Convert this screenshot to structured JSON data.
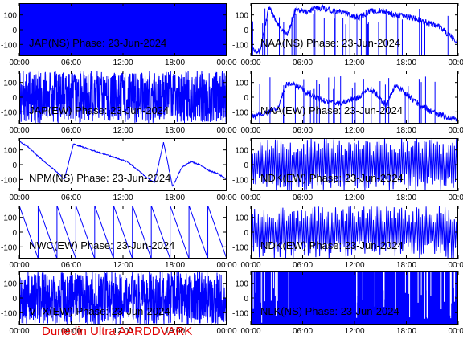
{
  "footer": "Dunedin Ultra AARDDVARK",
  "date": "23-Jun-2024",
  "colors": {
    "trace": "#0000ff",
    "axes": "#000000",
    "footer": "#e00000",
    "background": "#ffffff"
  },
  "chart_data": [
    {
      "type": "line",
      "title": "JAP(NS) Phase: 23-Jun-2024",
      "xlim": [
        "00:00",
        "24:00"
      ],
      "ylim": [
        -180,
        180
      ],
      "xticks": [
        "00:00",
        "06:00",
        "12:00",
        "18:00",
        "00:00"
      ],
      "yticks": [
        100,
        0,
        -100
      ],
      "series": [
        {
          "pattern": "saturated",
          "values": []
        }
      ]
    },
    {
      "type": "line",
      "title": "NAA(NS) Phase: 23-Jun-2024",
      "xlim": [
        "00:00",
        "24:00"
      ],
      "ylim": [
        -180,
        180
      ],
      "xticks": [
        "00:00",
        "06:00",
        "12:00",
        "18:00",
        "00:00"
      ],
      "yticks": [
        100,
        0,
        -100
      ],
      "series": [
        {
          "pattern": "drift",
          "values": [
            -120,
            -150,
            150,
            40,
            -40,
            140,
            120,
            140,
            150,
            130,
            120,
            100,
            80,
            120,
            130,
            120,
            100,
            90,
            80,
            60,
            40,
            20,
            -40,
            -90
          ]
        }
      ]
    },
    {
      "type": "line",
      "title": "JAP(EW) Phase: 23-Jun-2024",
      "xlim": [
        "00:00",
        "24:00"
      ],
      "ylim": [
        -180,
        180
      ],
      "xticks": [
        "00:00",
        "06:00",
        "12:00",
        "18:00",
        "00:00"
      ],
      "yticks": [
        100,
        0,
        -100
      ],
      "series": [
        {
          "pattern": "noise",
          "values": []
        }
      ]
    },
    {
      "type": "line",
      "title": "NAA(EW) Phase: 23-Jun-2024",
      "xlim": [
        "00:00",
        "24:00"
      ],
      "ylim": [
        -180,
        180
      ],
      "xticks": [
        "00:00",
        "06:00",
        "12:00",
        "18:00",
        "00:00"
      ],
      "yticks": [
        100,
        0,
        -100
      ],
      "series": [
        {
          "pattern": "drift",
          "values": [
            -140,
            -120,
            -100,
            -80,
            100,
            80,
            40,
            0,
            -20,
            -40,
            -40,
            -20,
            0,
            60,
            20,
            -60,
            80,
            40,
            -20,
            -60,
            -100,
            -120,
            -140,
            -150
          ]
        }
      ]
    },
    {
      "type": "line",
      "title": "NPM(NS) Phase: 23-Jun-2024",
      "xlim": [
        "00:00",
        "24:00"
      ],
      "ylim": [
        -180,
        180
      ],
      "xticks": [
        "00:00",
        "06:00",
        "12:00",
        "18:00",
        "00:00"
      ],
      "yticks": [
        100,
        0,
        -100
      ],
      "series": [
        {
          "pattern": "smooth",
          "values": [
            160,
            120,
            60,
            10,
            -40,
            -100,
            140,
            120,
            100,
            80,
            60,
            40,
            20,
            -30,
            -80,
            -120,
            150,
            -150,
            -20,
            20,
            0,
            -40,
            -60,
            -100
          ]
        }
      ]
    },
    {
      "type": "line",
      "title": "NDK(EW) Phase: 23-Jun-2024",
      "xlim": [
        "00:00",
        "24:00"
      ],
      "ylim": [
        -180,
        180
      ],
      "xticks": [
        "00:00",
        "06:00",
        "12:00",
        "18:00",
        "00:00"
      ],
      "yticks": [
        100,
        0,
        -100
      ],
      "series": [
        {
          "pattern": "zigzag",
          "values": []
        }
      ]
    },
    {
      "type": "line",
      "title": "NWC(EW) Phase: 23-Jun-2024",
      "xlim": [
        "00:00",
        "24:00"
      ],
      "ylim": [
        -180,
        180
      ],
      "xticks": [
        "00:00",
        "06:00",
        "12:00",
        "18:00",
        "00:00"
      ],
      "yticks": [
        100,
        0,
        -100
      ],
      "series": [
        {
          "pattern": "sawtooth",
          "values": []
        }
      ]
    },
    {
      "type": "line",
      "title": "NDK(EW) Phase: 23-Jun-2024",
      "xlim": [
        "00:00",
        "24:00"
      ],
      "ylim": [
        -180,
        180
      ],
      "xticks": [
        "00:00",
        "06:00",
        "12:00",
        "18:00",
        "00:00"
      ],
      "yticks": [
        100,
        0,
        -100
      ],
      "series": [
        {
          "pattern": "zigzag",
          "values": []
        }
      ]
    },
    {
      "type": "line",
      "title": "VTX(EW) Phase: 23-Jun-2024",
      "xlim": [
        "00:00",
        "24:00"
      ],
      "ylim": [
        -180,
        180
      ],
      "xticks": [
        "00:00",
        "06:00",
        "12:00",
        "18:00",
        "00:00"
      ],
      "yticks": [
        100,
        0,
        -100
      ],
      "series": [
        {
          "pattern": "noise",
          "values": []
        }
      ]
    },
    {
      "type": "line",
      "title": "NLK(NS) Phase: 23-Jun-2024",
      "xlim": [
        "00:00",
        "24:00"
      ],
      "ylim": [
        -180,
        180
      ],
      "xticks": [
        "00:00",
        "06:00",
        "12:00",
        "18:00",
        "00:00"
      ],
      "yticks": [
        100,
        0,
        -100
      ],
      "series": [
        {
          "pattern": "saturated",
          "values": []
        }
      ]
    }
  ]
}
